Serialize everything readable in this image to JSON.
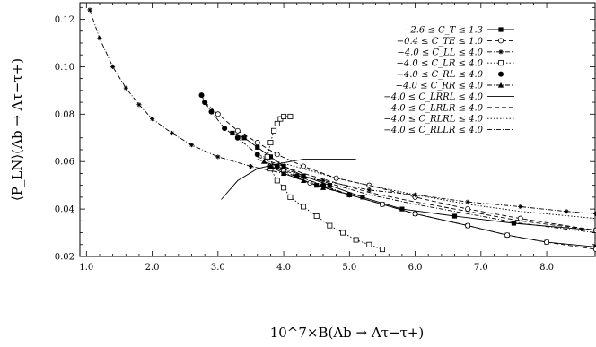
{
  "chart_data": {
    "type": "line",
    "title": "",
    "xlabel": "10^7×B(Λb → Λτ−τ+)",
    "ylabel": "⟨P_LN⟩(Λb → Λτ−τ+)",
    "xlim": [
      0.9,
      8.75
    ],
    "ylim": [
      0.02,
      0.127
    ],
    "x_ticks": [
      "1.0",
      "2.0",
      "3.0",
      "4.0",
      "5.0",
      "6.0",
      "7.0",
      "8.0"
    ],
    "y_ticks": [
      "0.02",
      "0.04",
      "0.06",
      "0.08",
      "0.10",
      "0.12"
    ],
    "grid": false,
    "legend_position": "top-right",
    "series": [
      {
        "name": "−2.6 ≤ C_T ≤ 1.3",
        "marker": "filled-square",
        "dash": "solid",
        "branches": [
          {
            "x": [
              3.22,
              3.4,
              3.6,
              3.8,
              4.0,
              4.3,
              4.7,
              5.2,
              5.8,
              6.6,
              7.5,
              8.75
            ],
            "y": [
              0.072,
              0.07,
              0.066,
              0.062,
              0.058,
              0.054,
              0.05,
              0.045,
              0.04,
              0.037,
              0.034,
              0.031
            ]
          },
          {
            "x": [
              3.8,
              4.0,
              4.5,
              5.0,
              5.5,
              6.0,
              6.8,
              7.4,
              8.0,
              8.75
            ],
            "y": [
              0.058,
              0.055,
              0.05,
              0.046,
              0.042,
              0.038,
              0.033,
              0.029,
              0.026,
              0.024
            ]
          }
        ]
      },
      {
        "name": "−0.4 ≤ C_TE ≤ 1.0",
        "marker": "open-circle",
        "dash": "dashed",
        "branches": [
          {
            "x": [
              2.8,
              3.0,
              3.3,
              3.6,
              3.9,
              4.3,
              4.8,
              5.3,
              6.0,
              6.8,
              7.6,
              8.75
            ],
            "y": [
              0.085,
              0.08,
              0.073,
              0.068,
              0.063,
              0.058,
              0.053,
              0.05,
              0.045,
              0.04,
              0.036,
              0.031
            ]
          },
          {
            "x": [
              3.8,
              4.0,
              4.4,
              5.0,
              5.5,
              6.0,
              6.8,
              7.4,
              8.0,
              8.75
            ],
            "y": [
              0.058,
              0.056,
              0.051,
              0.046,
              0.042,
              0.038,
              0.033,
              0.029,
              0.026,
              0.023
            ]
          }
        ]
      },
      {
        "name": "−4.0 ≤ C_LL ≤ 4.0",
        "marker": "star",
        "dash": "dash-dot",
        "branches": [
          {
            "x": [
              1.05,
              1.2,
              1.4,
              1.6,
              1.8,
              2.0,
              2.3,
              2.6,
              3.0,
              3.5,
              4.0,
              4.6,
              5.3,
              6.0,
              6.8,
              7.6,
              8.3,
              8.75
            ],
            "y": [
              0.124,
              0.112,
              0.1,
              0.091,
              0.084,
              0.078,
              0.072,
              0.067,
              0.062,
              0.058,
              0.055,
              0.052,
              0.048,
              0.046,
              0.043,
              0.041,
              0.039,
              0.038
            ]
          }
        ]
      },
      {
        "name": "−4.0 ≤ C_LR ≤ 4.0",
        "marker": "dotted-square",
        "dash": "dotted",
        "branches": [
          {
            "x": [
              3.8,
              3.9,
              4.0,
              4.1,
              4.3,
              4.5,
              4.7,
              4.9,
              5.1,
              5.3,
              5.5
            ],
            "y": [
              0.057,
              0.052,
              0.049,
              0.045,
              0.041,
              0.037,
              0.033,
              0.03,
              0.027,
              0.025,
              0.023
            ]
          },
          {
            "x": [
              3.75,
              3.8,
              3.85,
              3.9,
              3.95,
              4.0,
              4.1
            ],
            "y": [
              0.062,
              0.068,
              0.073,
              0.076,
              0.078,
              0.079,
              0.079
            ]
          }
        ]
      },
      {
        "name": "−4.0 ≤ C_RL ≤ 4.0",
        "marker": "filled-circle",
        "dash": "dash-dot",
        "branches": [
          {
            "x": [
              2.75,
              2.8,
              2.9,
              3.1,
              3.3,
              3.6,
              3.9,
              4.2,
              4.6,
              5.0
            ],
            "y": [
              0.088,
              0.085,
              0.081,
              0.074,
              0.07,
              0.063,
              0.058,
              0.054,
              0.05,
              0.046
            ]
          }
        ]
      },
      {
        "name": "−4.0 ≤ C_RR ≤ 4.0",
        "marker": "filled-triangle",
        "dash": "dash-dot",
        "branches": [
          {
            "x": [
              3.7,
              3.8,
              4.0,
              4.3,
              4.6,
              5.0
            ],
            "y": [
              0.06,
              0.058,
              0.055,
              0.052,
              0.049,
              0.046
            ]
          }
        ]
      },
      {
        "name": "−4.0 ≤ C_LRRL ≤ 4.0",
        "marker": "none",
        "dash": "solid",
        "branches": [
          {
            "x": [
              3.05,
              3.3,
              3.6,
              3.9,
              4.3,
              4.7,
              5.1
            ],
            "y": [
              0.044,
              0.052,
              0.057,
              0.059,
              0.061,
              0.061,
              0.061
            ]
          }
        ]
      },
      {
        "name": "−4.0 ≤ C_LRLR ≤ 4.0",
        "marker": "none",
        "dash": "dashed",
        "branches": [
          {
            "x": [
              3.6,
              3.9,
              4.3,
              4.8,
              5.3,
              6.0,
              6.8,
              7.6,
              8.75
            ],
            "y": [
              0.062,
              0.059,
              0.055,
              0.051,
              0.047,
              0.043,
              0.039,
              0.035,
              0.031
            ]
          }
        ]
      },
      {
        "name": "−4.0 ≤ C_RLRL ≤ 4.0",
        "marker": "none",
        "dash": "dotted",
        "branches": [
          {
            "x": [
              3.6,
              3.9,
              4.3,
              4.8,
              5.3,
              6.0,
              6.8,
              7.6,
              8.75
            ],
            "y": [
              0.063,
              0.06,
              0.057,
              0.053,
              0.05,
              0.046,
              0.042,
              0.039,
              0.036
            ]
          }
        ]
      },
      {
        "name": "−4.0 ≤ C_RLLR ≤ 4.0",
        "marker": "none",
        "dash": "dash-dot",
        "branches": [
          {
            "x": [
              3.6,
              3.9,
              4.3,
              4.8,
              5.3,
              6.0,
              6.8,
              7.6,
              8.75
            ],
            "y": [
              0.061,
              0.058,
              0.054,
              0.05,
              0.046,
              0.042,
              0.038,
              0.034,
              0.03
            ]
          }
        ]
      }
    ]
  }
}
